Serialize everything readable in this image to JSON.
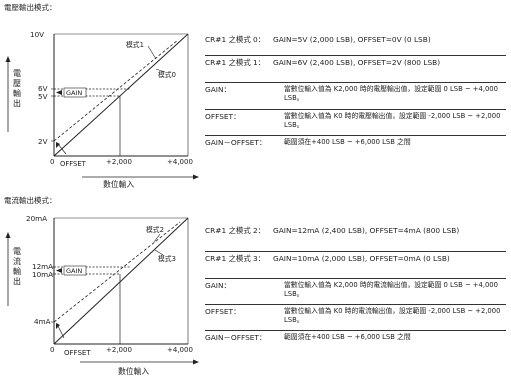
{
  "voltage": {
    "title": "電壓輸出模式：",
    "graph": {
      "y_title": [
        "電",
        "壓",
        "輸",
        "出"
      ],
      "x_title": "數位輸入",
      "y_ticks": [
        "10V",
        "6V",
        "5V",
        "2V"
      ],
      "x_ticks": [
        "0",
        "+2,000",
        "+4,000"
      ],
      "offset_label": "OFFSET",
      "gain_label": "GAIN",
      "mode1_label": "模式1",
      "mode0_label": "模式0"
    },
    "rows": [
      {
        "label": "CR#1 之模式 0：",
        "value": "GAIN=5V (2,000 LSB), OFFSET=0V (0 LSB)"
      },
      {
        "label": "CR#1 之模式 1：",
        "value": "GAIN=6V (2,400 LSB), OFFSET=2V (800 LSB)"
      },
      {
        "label": "GAIN：",
        "value": "當數位輸入值為 K2,000 時的電壓輸出值，設定範圍 0 LSB ~ +4,000 LSB。"
      },
      {
        "label": "OFFSET：",
        "value": "當數位輸入值為 K0 時的電壓輸出值，設定範圍 -2,000 LSB ~ +2,000 LSB。"
      },
      {
        "label": "GAIN－OFFSET：",
        "value": "範圍須在+400 LSB ~ +6,000 LSB 之間"
      }
    ]
  },
  "current": {
    "title": "電流輸出模式：",
    "graph": {
      "y_title": [
        "電",
        "流",
        "輸",
        "出"
      ],
      "x_title": "數位輸入",
      "y_ticks": [
        "20mA",
        "12mA",
        "10mA",
        "4mA"
      ],
      "x_ticks": [
        "0",
        "+2,000",
        "+4,000"
      ],
      "offset_label": "OFFSET",
      "gain_label": "GAIN",
      "mode2_label": "模式2",
      "mode3_label": "模式3"
    },
    "rows": [
      {
        "label": "CR#1 之模式 2：",
        "value": "GAIN=12mA (2,400 LSB), OFFSET=4mA (800 LSB)"
      },
      {
        "label": "CR#1 之模式 3：",
        "value": "GAIN=10mA (2,000 LSB), OFFSET=0mA (0 LSB)"
      },
      {
        "label": "GAIN：",
        "value": "當數位輸入值為 K2,000 時的電流輸出值，設定範圍 0 LSB ~ +4,000 LSB。"
      },
      {
        "label": "OFFSET：",
        "value": "當數位輸入值為 K0 時的電流輸出值，設定範圍 -2,000 LSB ~ +2,000 LSB。"
      },
      {
        "label": "GAIN－OFFSET：",
        "value": "範圍須在+400 LSB ~ +6,000 LSB 之間"
      }
    ]
  }
}
